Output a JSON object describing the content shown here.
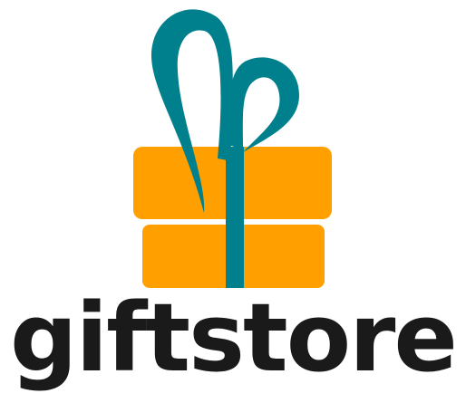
{
  "brand": {
    "name": "giftstore"
  },
  "colors": {
    "box": "#FFA000",
    "ribbon": "#007F8C",
    "text": "#1a1a1a",
    "background": "#ffffff"
  },
  "icons": {
    "logo": "gift-box-icon"
  }
}
